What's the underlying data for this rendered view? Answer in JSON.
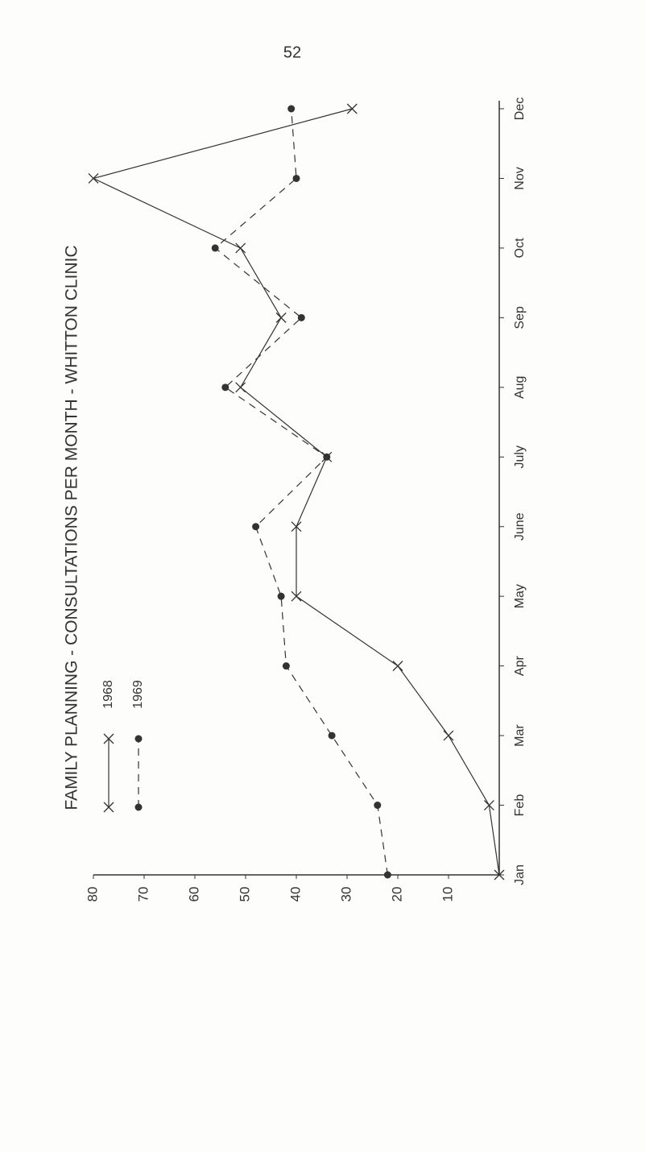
{
  "page_number": "52",
  "chart_data": {
    "type": "line",
    "title": "FAMILY PLANNING - CONSULTATIONS PER MONTH - WHITTON CLINIC",
    "categories": [
      "Jan",
      "Feb",
      "Mar",
      "Apr",
      "May",
      "June",
      "July",
      "Aug",
      "Sep",
      "Oct",
      "Nov",
      "Dec"
    ],
    "series": [
      {
        "name": "1968",
        "color": "#333333",
        "dash": false,
        "marker": "x",
        "values": [
          0,
          2,
          10,
          20,
          40,
          40,
          34,
          51,
          43,
          51,
          80,
          29
        ]
      },
      {
        "name": "1969",
        "color": "#333333",
        "dash": true,
        "marker": "dot",
        "values": [
          22,
          24,
          33,
          42,
          43,
          48,
          34,
          54,
          39,
          56,
          40,
          41
        ]
      }
    ],
    "ylim": [
      0,
      80
    ],
    "yticks": [
      10,
      20,
      30,
      40,
      50,
      60,
      70,
      80
    ],
    "grid": false,
    "rotated": true
  }
}
